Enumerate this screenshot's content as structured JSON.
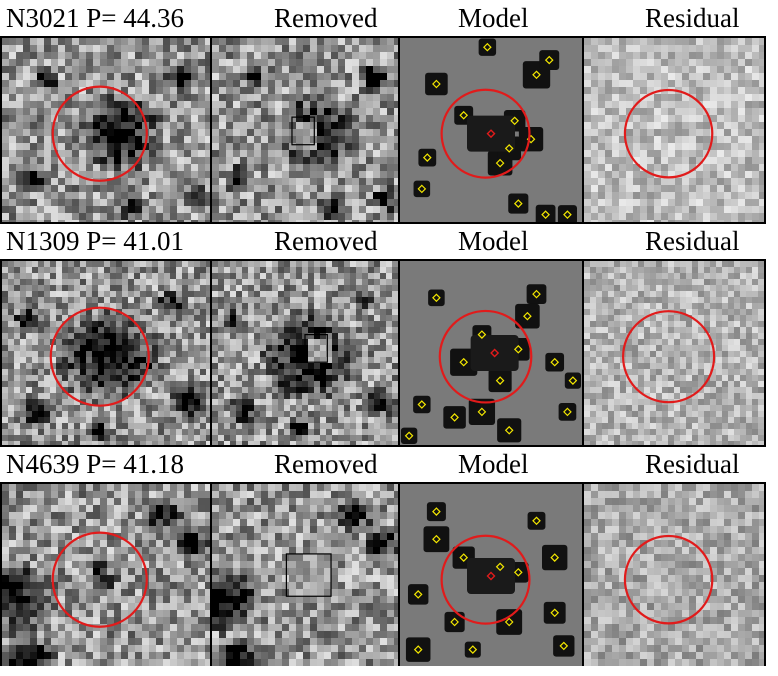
{
  "rows": [
    {
      "id": "N3021",
      "p_label": "P=",
      "p_value": "44.36",
      "col_removed": "Removed",
      "col_model": "Model",
      "col_residual": "Residual"
    },
    {
      "id": "N1309",
      "p_label": "P=",
      "p_value": "41.01",
      "col_removed": "Removed",
      "col_model": "Model",
      "col_residual": "Residual"
    },
    {
      "id": "N4639",
      "p_label": "P=",
      "p_value": "41.18",
      "col_removed": "Removed",
      "col_model": "Model",
      "col_residual": "Residual"
    }
  ],
  "colors": {
    "circle": "#e11b1b",
    "source_marker": "#f2e600",
    "center_marker": "#e11b1b",
    "model_background": "#7a7a7a"
  }
}
